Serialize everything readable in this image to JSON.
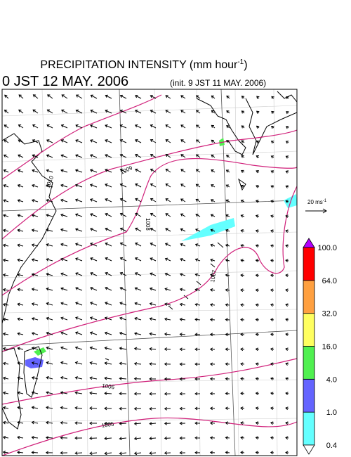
{
  "header": {
    "title": "PRECIPITATION INTENSITY (mm hour",
    "title_sup": "-1",
    "title_end": ")",
    "time": "0 JST 12 MAY. 2006",
    "init": "(init. 9 JST 11 MAY. 2006)"
  },
  "wind_key": {
    "label": "20 ms",
    "sup": "-1"
  },
  "isobars": [
    1010,
    1009,
    1008,
    1007,
    1006,
    1005
  ],
  "colorbar": {
    "levels": [
      0.4,
      {
        "value": 1,
        "label": "1.0"
      },
      {
        "value": 4,
        "label": "4.0"
      },
      {
        "value": 16,
        "label": "16.0"
      },
      {
        "value": 32,
        "label": "32.0"
      },
      {
        "value": 64,
        "label": "64.0"
      },
      {
        "value": 100,
        "label": "100.0"
      }
    ],
    "colors": [
      "#64ffff",
      "#6464ff",
      "#50f050",
      "#ffff60",
      "#ffa040",
      "#ff0000"
    ],
    "over": "#b400ff",
    "under": "#ffffff"
  }
}
